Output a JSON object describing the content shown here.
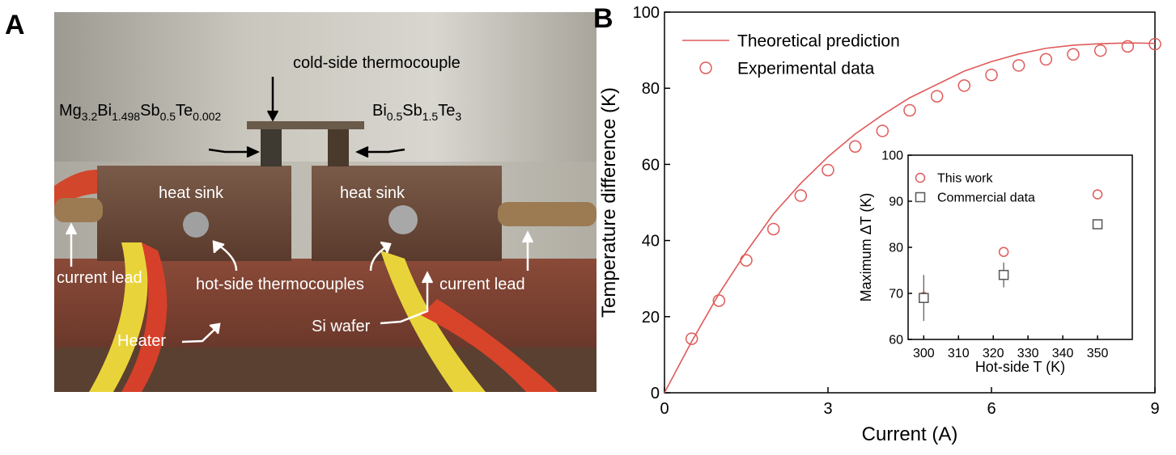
{
  "panel_labels": [
    "A",
    "B"
  ],
  "panel_a": {
    "cold_thermocouple": "cold-side thermocouple",
    "formula_left": [
      "Mg",
      "3.2",
      "Bi",
      "1.498",
      "Sb",
      "0.5",
      "Te",
      "0.002"
    ],
    "formula_right": [
      "Bi",
      "0.5",
      "Sb",
      "1.5",
      "Te",
      "3"
    ],
    "heat_sink_left": "heat sink",
    "heat_sink_right": "heat sink",
    "current_lead_left": "current lead",
    "current_lead_right": "current lead",
    "hot_thermocouples": "hot-side thermocouples",
    "heater": "Heater",
    "si_wafer": "Si wafer"
  },
  "chart_data": [
    {
      "type": "line",
      "xlabel": "Current (A)",
      "ylabel": "Temperature difference (K)",
      "xlim": [
        0,
        9
      ],
      "ylim": [
        0,
        100
      ],
      "xticks": [
        0,
        3,
        6,
        9
      ],
      "yticks": [
        0,
        20,
        40,
        60,
        80,
        100
      ],
      "legend": "upper left",
      "series": [
        {
          "name": "Theoretical prediction",
          "color": "#e05a5a",
          "mode": "line",
          "x": [
            0,
            0.5,
            1,
            1.5,
            2,
            2.5,
            3,
            3.5,
            4,
            4.5,
            5,
            5.5,
            6,
            6.5,
            7,
            7.5,
            8,
            8.5,
            9
          ],
          "values": [
            0,
            13.5,
            26,
            37,
            47,
            55,
            62,
            68,
            73,
            77.5,
            81,
            84.5,
            87,
            89,
            90.5,
            91.3,
            91.7,
            91.9,
            91.8
          ]
        },
        {
          "name": "Experimental data",
          "color": "#e05a5a",
          "mode": "markers",
          "marker": "circle",
          "x": [
            0.5,
            1,
            1.5,
            2,
            2.5,
            3,
            3.5,
            4,
            4.5,
            5,
            5.5,
            6,
            6.5,
            7,
            7.5,
            8,
            8.5,
            9
          ],
          "values": [
            14.2,
            24.2,
            34.8,
            43.0,
            51.8,
            58.5,
            64.7,
            68.8,
            74.2,
            77.9,
            80.7,
            83.5,
            86.0,
            87.6,
            88.9,
            89.9,
            91.0,
            91.6
          ]
        }
      ]
    },
    {
      "type": "scatter",
      "xlabel": "Hot-side T (K)",
      "ylabel": "Maximum ΔT (K)",
      "xlim": [
        295.5,
        360
      ],
      "ylim": [
        60,
        100
      ],
      "xticks": [
        300,
        310,
        320,
        330,
        340,
        350
      ],
      "yticks": [
        60,
        70,
        80,
        90,
        100
      ],
      "legend": "upper left",
      "series": [
        {
          "name": "This work",
          "color": "#e05a5a",
          "mode": "markers",
          "marker": "circle",
          "x": [
            300,
            323,
            350
          ],
          "values": [
            69.2,
            79,
            91.5
          ]
        },
        {
          "name": "Commercial data",
          "color": "#555555",
          "mode": "markers",
          "marker": "square",
          "x": [
            300,
            323,
            350
          ],
          "values": [
            69,
            74,
            85
          ],
          "errors": [
            5,
            2.7,
            null
          ]
        }
      ]
    }
  ]
}
